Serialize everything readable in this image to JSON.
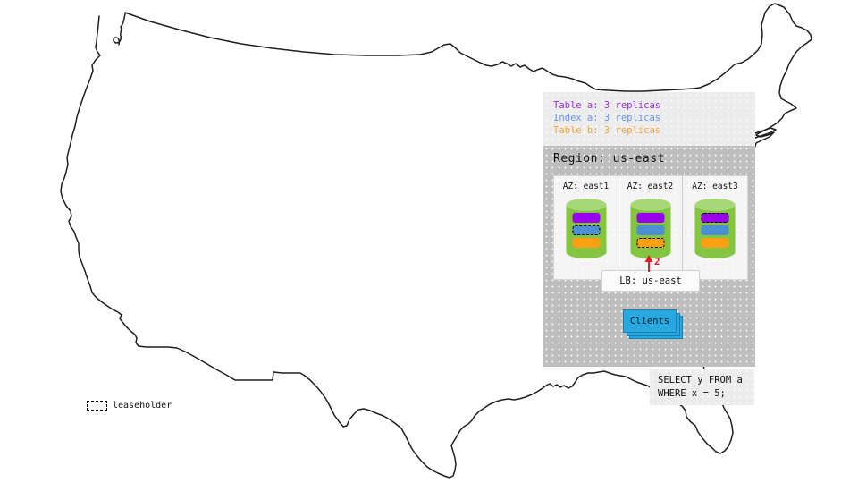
{
  "colors": {
    "table_a_purple": "#9900ee",
    "index_a_blue": "#4d8fd3",
    "table_b_orange": "#ffa014",
    "legend_purple_text": "#9b30e0",
    "legend_blue_text": "#6495ed",
    "legend_orange_text": "#f5a33c",
    "cylinder_body_green": "#83c440",
    "cylinder_top_green": "#a6d875",
    "clients_blue": "#29a7df",
    "arrow_red": "#e8192c",
    "panel_light_gray": "#ececec",
    "panel_dark_gray": "#bebebe"
  },
  "legend": {
    "items": [
      {
        "text": "Table a: 3 replicas",
        "style": "color:#9b30e0"
      },
      {
        "text": "Index a: 3 replicas",
        "style": "color:#6495ed"
      },
      {
        "text": "Table b: 3 replicas",
        "style": "color:#f5a33c"
      }
    ]
  },
  "region": {
    "title": "Region: us-east",
    "azs": [
      {
        "label": "AZ: east1",
        "bars": [
          {
            "name": "table-a-replica",
            "color": "#9900ee",
            "leaseholder": false
          },
          {
            "name": "index-a-replica",
            "color": "#4d8fd3",
            "leaseholder": true
          },
          {
            "name": "table-b-replica",
            "color": "#ffa014",
            "leaseholder": false
          }
        ]
      },
      {
        "label": "AZ: east2",
        "bars": [
          {
            "name": "table-a-replica",
            "color": "#9900ee",
            "leaseholder": false
          },
          {
            "name": "index-a-replica",
            "color": "#4d8fd3",
            "leaseholder": false
          },
          {
            "name": "table-b-replica",
            "color": "#ffa014",
            "leaseholder": true
          }
        ]
      },
      {
        "label": "AZ: east3",
        "bars": [
          {
            "name": "table-a-replica",
            "color": "#9900ee",
            "leaseholder": true
          },
          {
            "name": "index-a-replica",
            "color": "#4d8fd3",
            "leaseholder": false
          },
          {
            "name": "table-b-replica",
            "color": "#ffa014",
            "leaseholder": false
          }
        ]
      }
    ],
    "arrow_label": "2",
    "lb_label": "LB: us-east",
    "clients_label": "Clients"
  },
  "sql": {
    "line1": "SELECT y FROM a",
    "line2": "WHERE x = 5;"
  },
  "map_legend": {
    "leaseholder_label": "leaseholder"
  }
}
